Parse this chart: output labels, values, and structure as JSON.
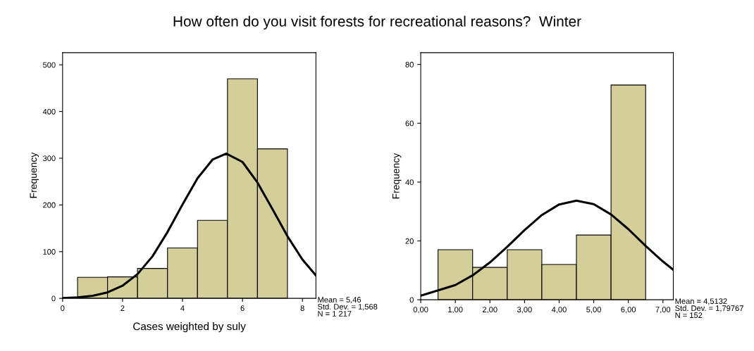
{
  "chart_data": [
    {
      "type": "histogram",
      "title": "How often do you visit forests for recreational reasons?  Winter",
      "xlabel": "Cases weighted by suly",
      "ylabel": "Frequency",
      "bins": [
        0.5,
        1.5,
        2.5,
        3.5,
        4.5,
        5.5,
        6.5,
        7.5
      ],
      "values": [
        45,
        46,
        64,
        108,
        167,
        470,
        320
      ],
      "color": "#d3ce9a",
      "series": [
        {
          "type": "line",
          "color": "#000000",
          "x": [
            0,
            0.5,
            1,
            1.5,
            2,
            2.5,
            3,
            3.5,
            4,
            4.5,
            5,
            5.46,
            6,
            6.5,
            7,
            7.5,
            8,
            8.45
          ],
          "values": [
            0.7,
            2.1,
            5.4,
            12.7,
            27,
            52,
            90,
            142,
            201,
            257,
            297,
            310,
            292,
            248,
            191,
            133,
            83,
            49
          ]
        }
      ],
      "xlim": [
        0,
        8.45
      ],
      "xticks": [
        0,
        2,
        4,
        6,
        8
      ],
      "ylim": [
        0,
        526
      ],
      "yticks": [
        0,
        100,
        200,
        300,
        400,
        500
      ],
      "grid": false,
      "legend": false,
      "annotations": [
        "Mean = 5,46\nStd. Dev. = 1,568\nN = 1 217"
      ]
    },
    {
      "type": "histogram",
      "ylabel": "Frequency",
      "bins": [
        0.5,
        1.5,
        2.5,
        3.5,
        4.5,
        5.5,
        6.5
      ],
      "values": [
        17,
        11,
        17,
        12,
        22,
        73
      ],
      "color": "#d3ce9a",
      "series": [
        {
          "type": "line",
          "color": "#000000",
          "x": [
            0,
            1,
            1.5,
            2,
            2.5,
            3,
            3.5,
            4,
            4.5,
            5,
            5.5,
            6,
            6.5,
            7,
            7.3
          ],
          "values": [
            1.4,
            5.0,
            8.3,
            12.7,
            18.0,
            23.7,
            28.8,
            32.4,
            33.7,
            32.5,
            29.0,
            24.0,
            18.3,
            13.0,
            10.2
          ]
        }
      ],
      "xlim": [
        0,
        7.3
      ],
      "xticks": [
        {
          "value": 0,
          "label": "0,00"
        },
        {
          "value": 1,
          "label": "1,00"
        },
        {
          "value": 2,
          "label": "2,00"
        },
        {
          "value": 3,
          "label": "3,00"
        },
        {
          "value": 4,
          "label": "4,00"
        },
        {
          "value": 5,
          "label": "5,00"
        },
        {
          "value": 6,
          "label": "6,00"
        },
        {
          "value": 7,
          "label": "7,00"
        }
      ],
      "ylim": [
        0,
        84
      ],
      "yticks": [
        0,
        20,
        40,
        60,
        80
      ],
      "grid": false,
      "legend": false,
      "annotations": [
        "Mean = 4,5132\nStd. Dev. = 1,79767\nN = 152"
      ]
    }
  ]
}
